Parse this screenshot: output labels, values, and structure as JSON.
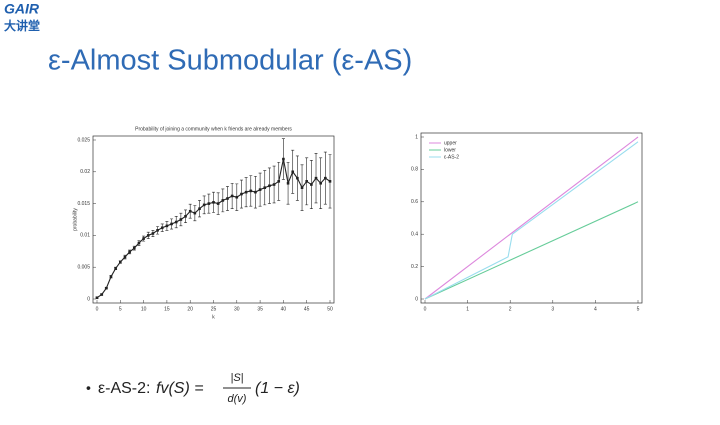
{
  "logo": {
    "brand": "GAIR",
    "subtitle": "大讲堂"
  },
  "title": "ε-Almost Submodular (ε-AS)",
  "bullet": {
    "label": "ε-AS-2:",
    "lhs": "fv(S) =",
    "numerator": "|S|",
    "denominator": "d(v)",
    "factor": "(1 − ε)"
  },
  "chart_data": [
    {
      "type": "line",
      "title": "Probability of joining a community when k friends are already members",
      "x_label": "k",
      "y_label": "probability",
      "color": "#222222",
      "x": [
        0,
        1,
        2,
        3,
        4,
        5,
        6,
        7,
        8,
        9,
        10,
        11,
        12,
        13,
        14,
        15,
        16,
        17,
        18,
        19,
        20,
        21,
        22,
        23,
        24,
        25,
        26,
        27,
        28,
        29,
        30,
        31,
        32,
        33,
        34,
        35,
        36,
        37,
        38,
        39,
        40,
        41,
        42,
        43,
        44,
        45,
        46,
        47,
        48,
        49,
        50
      ],
      "values": [
        0.0002,
        0.0007,
        0.0017,
        0.0035,
        0.0048,
        0.0058,
        0.0066,
        0.0074,
        0.008,
        0.0088,
        0.0095,
        0.01,
        0.0103,
        0.0108,
        0.0112,
        0.0115,
        0.0118,
        0.0121,
        0.0125,
        0.013,
        0.0138,
        0.0135,
        0.0142,
        0.0148,
        0.015,
        0.0152,
        0.015,
        0.0155,
        0.0158,
        0.0162,
        0.016,
        0.0165,
        0.0168,
        0.017,
        0.0168,
        0.0172,
        0.0175,
        0.0178,
        0.018,
        0.0185,
        0.022,
        0.0182,
        0.02,
        0.019,
        0.0175,
        0.0185,
        0.018,
        0.019,
        0.0182,
        0.019,
        0.0185
      ],
      "errors": [
        0.0001,
        0.0001,
        0.0001,
        0.0002,
        0.0002,
        0.0002,
        0.0003,
        0.0003,
        0.0003,
        0.0004,
        0.0004,
        0.0005,
        0.0005,
        0.0006,
        0.0006,
        0.0007,
        0.0008,
        0.0009,
        0.001,
        0.001,
        0.0011,
        0.0012,
        0.0013,
        0.0014,
        0.0015,
        0.0016,
        0.0017,
        0.0018,
        0.0019,
        0.002,
        0.0021,
        0.0022,
        0.0023,
        0.0024,
        0.0025,
        0.0026,
        0.0027,
        0.0028,
        0.0029,
        0.003,
        0.0032,
        0.0033,
        0.0034,
        0.0035,
        0.0036,
        0.0037,
        0.0038,
        0.0039,
        0.004,
        0.0041,
        0.0042
      ],
      "xlim": [
        0,
        50
      ],
      "xticks": [
        0,
        5,
        10,
        15,
        20,
        25,
        30,
        35,
        40,
        45,
        50
      ],
      "ylim": [
        0,
        0.025
      ],
      "yticks": [
        0,
        0.005,
        0.01,
        0.015,
        0.02,
        0.025
      ]
    },
    {
      "type": "line",
      "legend": "top-left",
      "series": [
        {
          "name": "upper",
          "color": "#dd88dd",
          "x": [
            0,
            5
          ],
          "values": [
            0,
            1
          ]
        },
        {
          "name": "lower",
          "color": "#66cc99",
          "x": [
            0,
            5
          ],
          "values": [
            0,
            0.6
          ]
        },
        {
          "name": "ε-AS-2",
          "color": "#99ddee",
          "x": [
            0,
            1.95,
            2.05,
            5
          ],
          "values": [
            0,
            0.26,
            0.4,
            0.97
          ]
        }
      ],
      "xlim": [
        0,
        5
      ],
      "xticks": [
        0,
        1,
        2,
        3,
        4,
        5
      ],
      "ylim": [
        0,
        1
      ],
      "yticks": [
        0,
        0.2,
        0.4,
        0.6,
        0.8,
        1
      ]
    }
  ]
}
